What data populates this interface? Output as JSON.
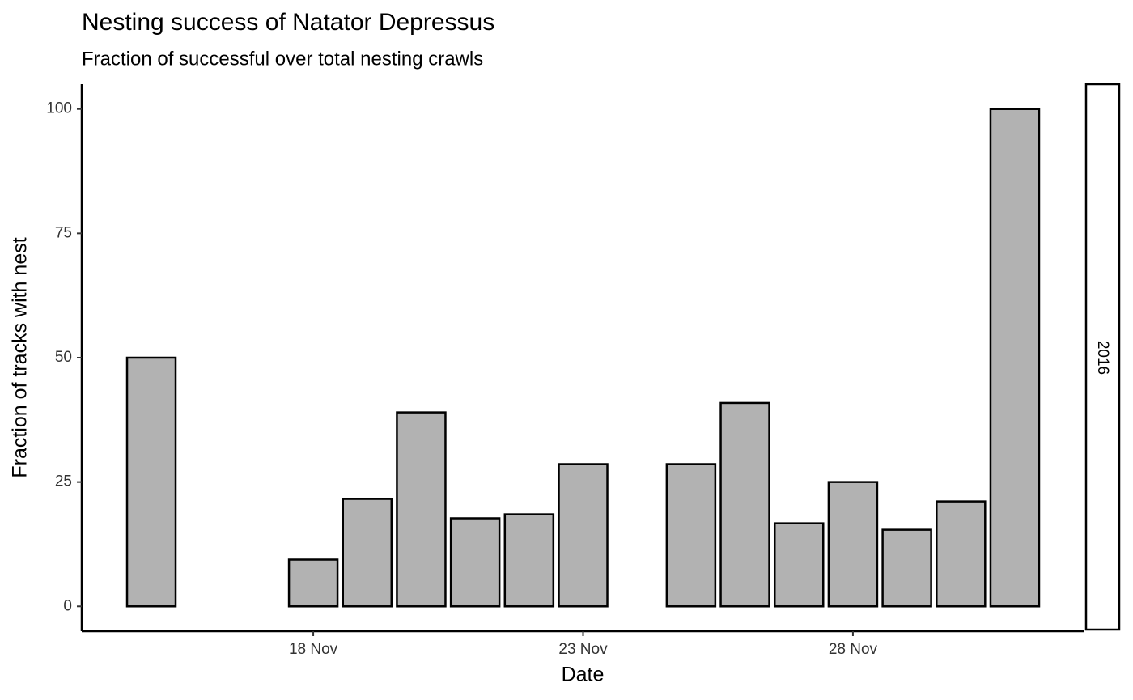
{
  "chart_data": {
    "type": "bar",
    "title": "Nesting success of Natator Depressus",
    "subtitle": "Fraction of successful over total nesting crawls",
    "x_label": "Date",
    "y_label": "Fraction of tracks with nest",
    "facet_label": "2016",
    "categories": [
      null,
      null,
      null,
      "18 Nov",
      null,
      null,
      null,
      null,
      "23 Nov",
      null,
      null,
      null,
      null,
      "28 Nov",
      null,
      null,
      null
    ],
    "values": [
      50,
      null,
      null,
      9.4,
      21.6,
      39,
      17.7,
      18.5,
      28.6,
      0,
      28.6,
      40.9,
      16.7,
      25,
      15.4,
      21.1,
      100
    ],
    "color": "#b2b2b2",
    "ylim": [
      -5,
      105
    ],
    "yticks": [
      0,
      25,
      50,
      75,
      100
    ],
    "grid": false
  }
}
